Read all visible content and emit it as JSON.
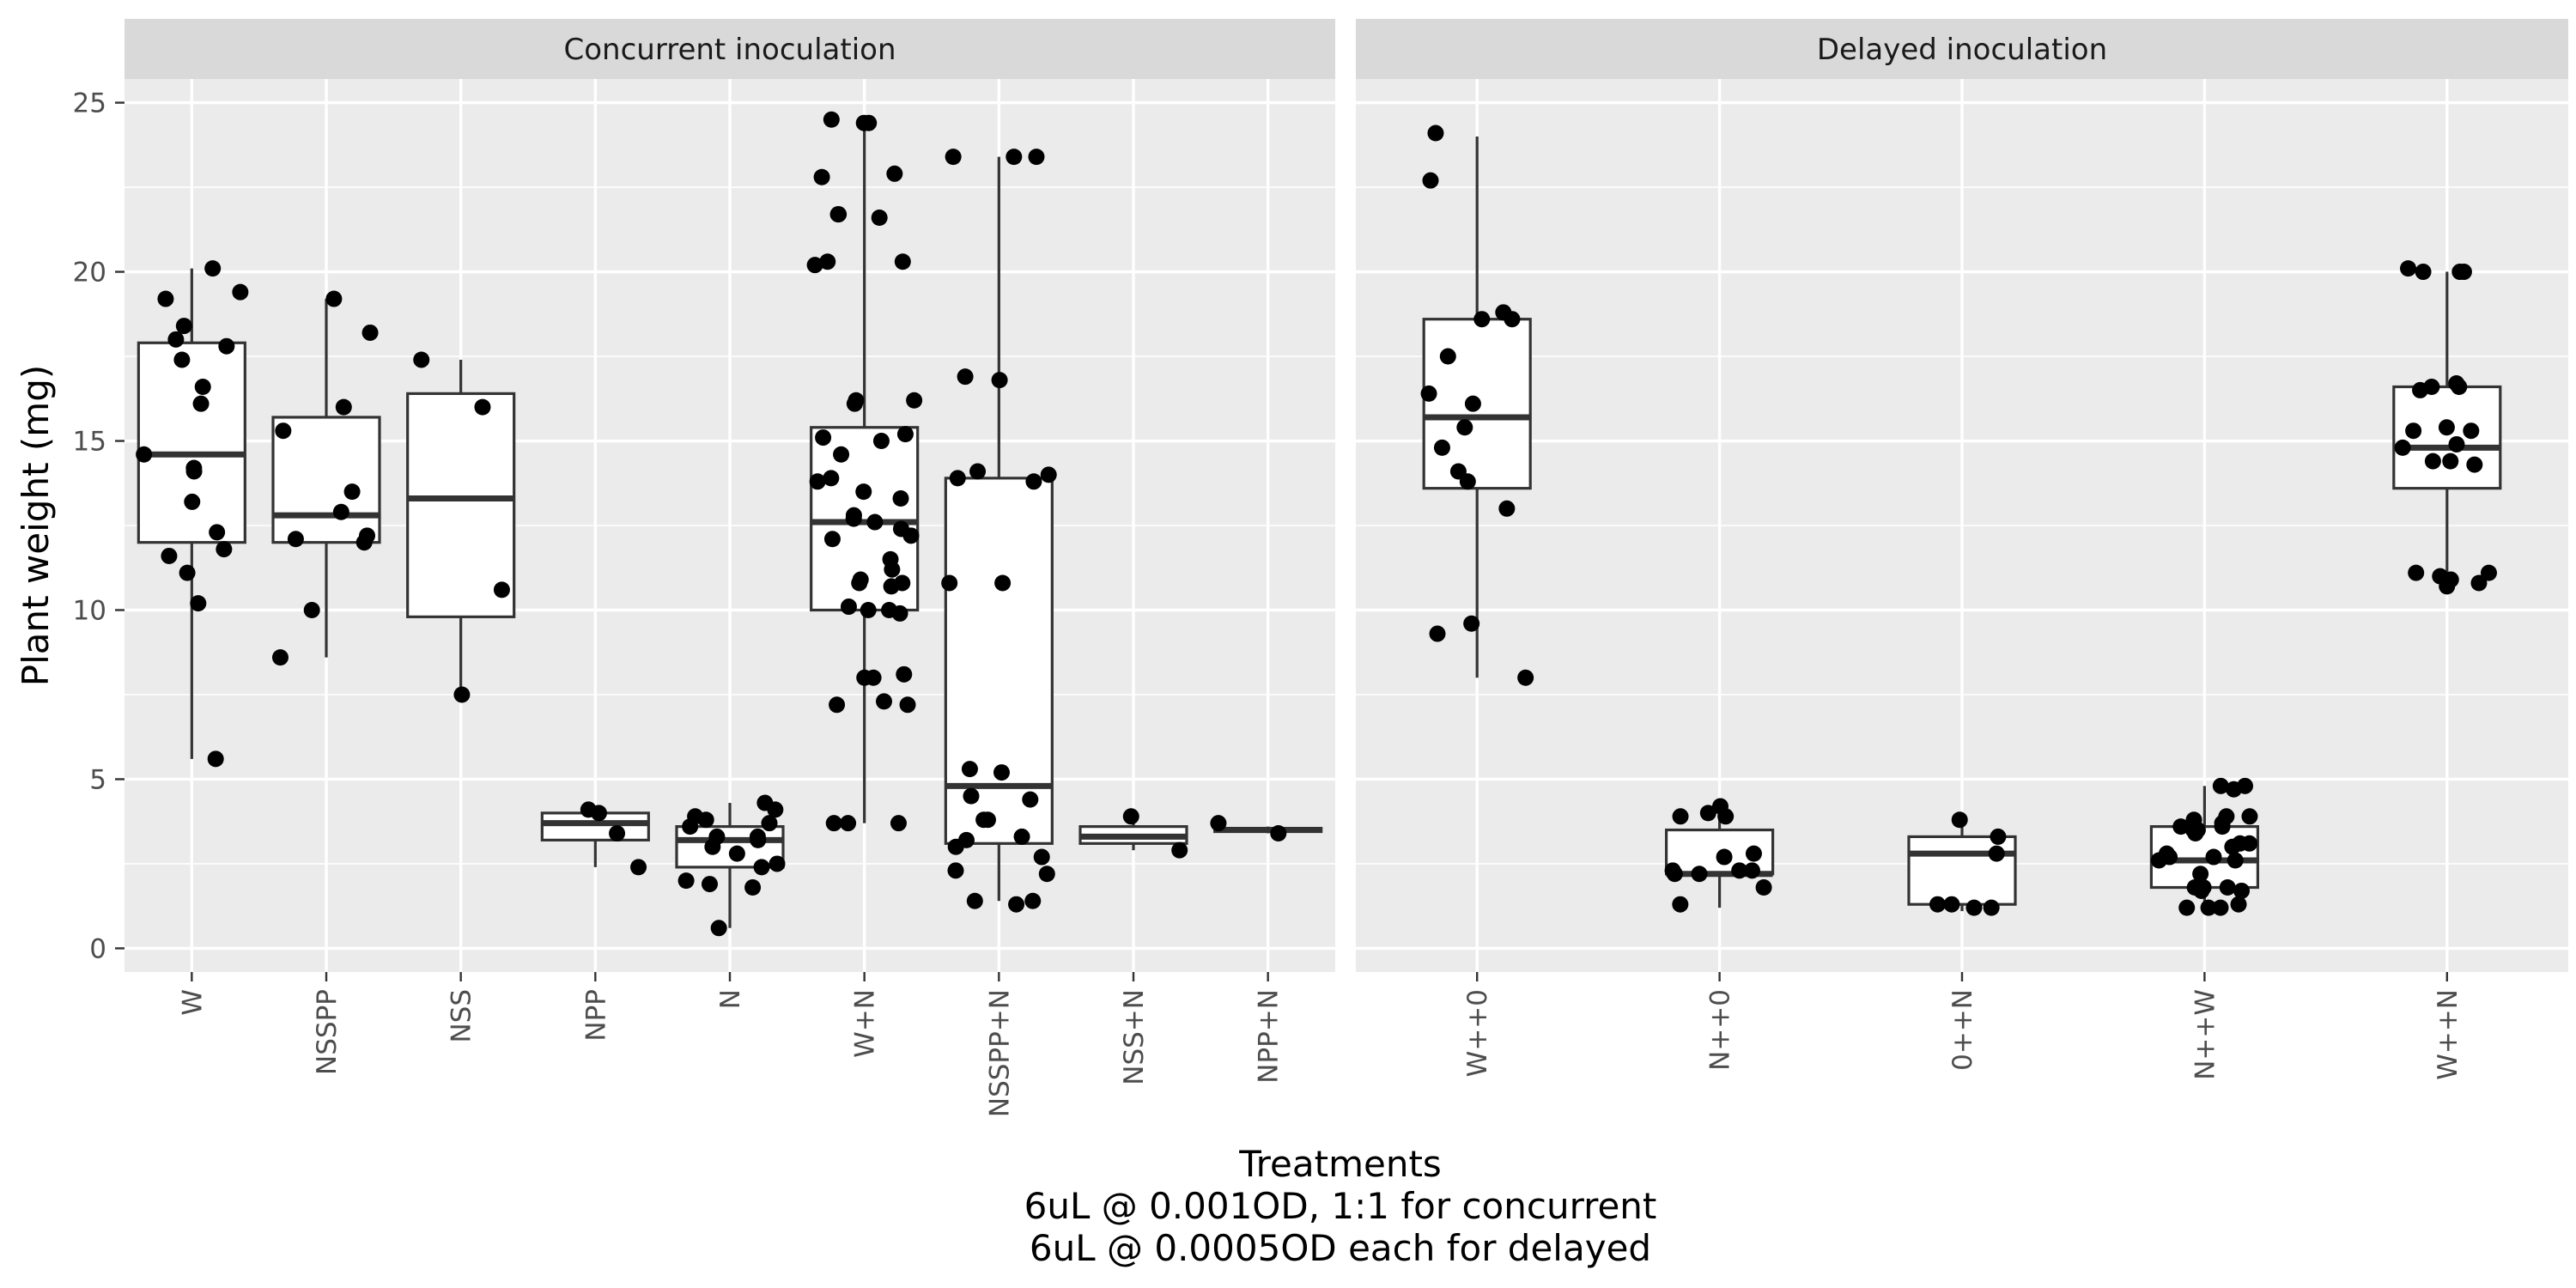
{
  "chart_data": {
    "type": "boxplot",
    "title": "",
    "ylabel": "Plant weight (mg)",
    "xlabel": [
      "Treatments",
      "6uL @ 0.001OD, 1:1 for concurrent",
      "6uL @ 0.0005OD each for delayed"
    ],
    "ylim": [
      -0.7,
      25.7
    ],
    "yticks": [
      0,
      5,
      10,
      15,
      20,
      25
    ],
    "grid": true,
    "legend": "none",
    "colors": {
      "panel": "#ebebeb",
      "strip": "#d9d9d9",
      "grid": "#ffffff",
      "box": "#333333",
      "point": "#000000"
    },
    "facets": [
      {
        "label": "Concurrent inoculation",
        "groups": [
          {
            "name": "W",
            "stats": {
              "lower": 5.6,
              "q1": 12.0,
              "median": 14.6,
              "q3": 17.9,
              "upper": 20.1
            },
            "points": [
              5.6,
              10.2,
              11.1,
              11.6,
              11.8,
              12.3,
              13.2,
              14.1,
              14.2,
              14.6,
              16.1,
              16.6,
              17.4,
              17.8,
              18.0,
              18.4,
              19.2,
              19.4,
              20.1
            ]
          },
          {
            "name": "NSSPP",
            "stats": {
              "lower": 8.6,
              "q1": 12.0,
              "median": 12.8,
              "q3": 15.7,
              "upper": 19.2
            },
            "points": [
              8.6,
              10.0,
              12.0,
              12.1,
              12.2,
              12.9,
              13.5,
              15.3,
              16.0,
              18.2,
              19.2
            ]
          },
          {
            "name": "NSS",
            "stats": {
              "lower": 7.5,
              "q1": 9.8,
              "median": 13.3,
              "q3": 16.4,
              "upper": 17.4
            },
            "points": [
              7.5,
              10.6,
              16.0,
              17.4
            ]
          },
          {
            "name": "NPP",
            "stats": {
              "lower": 2.4,
              "q1": 3.2,
              "median": 3.7,
              "q3": 4.0,
              "upper": 4.1
            },
            "points": [
              2.4,
              3.4,
              4.0,
              4.1
            ]
          },
          {
            "name": "N",
            "stats": {
              "lower": 0.6,
              "q1": 2.4,
              "median": 3.2,
              "q3": 3.6,
              "upper": 4.3
            },
            "points": [
              0.6,
              1.8,
              1.9,
              2.0,
              2.4,
              2.5,
              2.8,
              3.0,
              3.2,
              3.3,
              3.3,
              3.6,
              3.7,
              3.8,
              3.9,
              4.1,
              4.3
            ]
          },
          {
            "name": "W+N",
            "stats": {
              "lower": 3.7,
              "q1": 10.0,
              "median": 12.6,
              "q3": 15.4,
              "upper": 24.5
            },
            "points": [
              3.7,
              3.7,
              3.7,
              7.2,
              7.2,
              7.3,
              8.0,
              8.0,
              8.1,
              9.9,
              10.0,
              10.0,
              10.1,
              10.7,
              10.8,
              10.8,
              10.9,
              11.2,
              11.5,
              12.1,
              12.2,
              12.4,
              12.6,
              12.7,
              12.8,
              13.3,
              13.5,
              13.8,
              13.9,
              14.6,
              15.0,
              15.1,
              15.2,
              16.1,
              16.2,
              16.2,
              20.2,
              20.3,
              20.3,
              21.6,
              21.7,
              21.7,
              22.8,
              22.9,
              24.4,
              24.4,
              24.5
            ]
          },
          {
            "name": "NSSPP+N",
            "stats": {
              "lower": 1.4,
              "q1": 3.1,
              "median": 4.8,
              "q3": 13.9,
              "upper": 23.4
            },
            "points": [
              1.3,
              1.4,
              1.4,
              2.2,
              2.3,
              2.7,
              3.0,
              3.2,
              3.3,
              3.8,
              3.8,
              4.4,
              4.5,
              5.2,
              5.3,
              10.8,
              10.8,
              13.8,
              13.9,
              14.0,
              14.1,
              16.8,
              16.9,
              23.4,
              23.4,
              23.4
            ]
          },
          {
            "name": "NSS+N",
            "stats": {
              "lower": 2.9,
              "q1": 3.1,
              "median": 3.3,
              "q3": 3.6,
              "upper": 3.9
            },
            "points": [
              2.9,
              3.9
            ]
          },
          {
            "name": "NPP+N",
            "stats": {
              "lower": 3.4,
              "q1": 3.45,
              "median": 3.5,
              "q3": 3.55,
              "upper": 3.6
            },
            "points": [
              3.4,
              3.7
            ]
          }
        ]
      },
      {
        "label": "Delayed inoculation",
        "groups": [
          {
            "name": "W++0",
            "stats": {
              "lower": 8.0,
              "q1": 13.6,
              "median": 15.7,
              "q3": 18.6,
              "upper": 24.0
            },
            "points": [
              8.0,
              9.3,
              9.6,
              13.0,
              13.8,
              14.1,
              14.8,
              15.4,
              16.1,
              16.4,
              17.5,
              18.6,
              18.6,
              18.8,
              22.7,
              24.1
            ]
          },
          {
            "name": "N++0",
            "stats": {
              "lower": 1.2,
              "q1": 2.2,
              "median": 2.2,
              "q3": 3.5,
              "upper": 4.2
            },
            "points": [
              1.3,
              1.8,
              2.2,
              2.2,
              2.3,
              2.3,
              2.3,
              2.7,
              2.8,
              3.9,
              3.9,
              4.0,
              4.2
            ]
          },
          {
            "name": "0++N",
            "stats": {
              "lower": 1.1,
              "q1": 1.3,
              "median": 2.8,
              "q3": 3.3,
              "upper": 3.7
            },
            "points": [
              1.2,
              1.2,
              1.3,
              1.3,
              2.8,
              3.3,
              3.8
            ]
          },
          {
            "name": "N++W",
            "stats": {
              "lower": 1.2,
              "q1": 1.8,
              "median": 2.6,
              "q3": 3.6,
              "upper": 4.8
            },
            "points": [
              1.2,
              1.2,
              1.2,
              1.3,
              1.7,
              1.7,
              1.8,
              1.8,
              1.8,
              1.8,
              2.2,
              2.6,
              2.6,
              2.7,
              2.7,
              2.8,
              3.0,
              3.1,
              3.1,
              3.4,
              3.5,
              3.5,
              3.6,
              3.6,
              3.7,
              3.8,
              3.9,
              3.9,
              4.7,
              4.8,
              4.8
            ]
          },
          {
            "name": "W++N",
            "stats": {
              "lower": 10.8,
              "q1": 13.6,
              "median": 14.8,
              "q3": 16.6,
              "upper": 20.0
            },
            "points": [
              10.7,
              10.8,
              10.9,
              11.0,
              11.1,
              11.1,
              14.3,
              14.4,
              14.4,
              14.8,
              14.9,
              15.3,
              15.3,
              15.4,
              16.5,
              16.6,
              16.6,
              16.7,
              20.0,
              20.0,
              20.0,
              20.1
            ]
          }
        ]
      }
    ]
  }
}
